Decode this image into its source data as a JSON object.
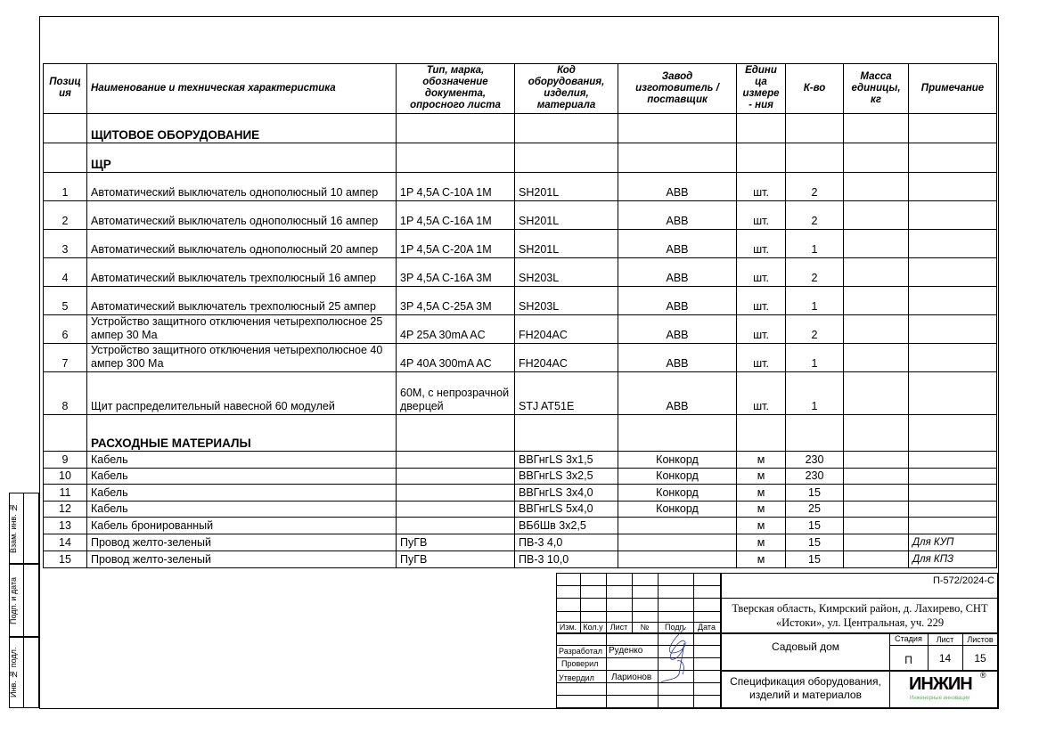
{
  "header": {
    "pos": "Позиц ия",
    "name": "Наименование и техническая характеристика",
    "type": "Тип, марка, обозначение документа, опросного листа",
    "code": "Код оборудования, изделия, материала",
    "maker": "Завод изготовитель / поставщик",
    "unit": "Едини ца измере - ния",
    "qty": "К-во",
    "mass": "Масса единицы, кг",
    "note": "Примечание"
  },
  "rows": [
    {
      "kind": "section",
      "name": "ЩИТОВОЕ ОБОРУДОВАНИЕ"
    },
    {
      "kind": "section",
      "name": "ЩР"
    },
    {
      "pos": "1",
      "name": "Автоматический выключатель однополюсный 10 ампер",
      "type": "1P 4,5A C-10A 1M",
      "code": "SH201L",
      "maker": "ABB",
      "unit": "шт.",
      "qty": "2",
      "mass": "",
      "note": ""
    },
    {
      "pos": "2",
      "name": "Автоматический выключатель однополюсный 16 ампер",
      "type": "1P 4,5A C-16A 1M",
      "code": "SH201L",
      "maker": "ABB",
      "unit": "шт.",
      "qty": "2",
      "mass": "",
      "note": ""
    },
    {
      "pos": "3",
      "name": "Автоматический выключатель однополюсный 20 ампер",
      "type": "1P 4,5A C-20A 1M",
      "code": "SH201L",
      "maker": "ABB",
      "unit": "шт.",
      "qty": "1",
      "mass": "",
      "note": ""
    },
    {
      "pos": "4",
      "name": "Автоматический выключатель трехполюсный 16 ампер",
      "type": "3P 4,5A  C-16A 3M",
      "code": "SH203L",
      "maker": "ABB",
      "unit": "шт.",
      "qty": "2",
      "mass": "",
      "note": ""
    },
    {
      "pos": "5",
      "name": "Автоматический выключатель трехполюсный 25 ампер",
      "type": "3P 4,5A  C-25A 3M",
      "code": "SH203L",
      "maker": "ABB",
      "unit": "шт.",
      "qty": "1",
      "mass": "",
      "note": ""
    },
    {
      "pos": "6",
      "name": "Устройство защитного отключения четырехполюсное 25 ампер 30 Ма",
      "type": "4P 25A 30mA AC",
      "code": "FH204AC",
      "maker": "ABB",
      "unit": "шт.",
      "qty": "2",
      "mass": "",
      "note": ""
    },
    {
      "pos": "7",
      "name": "Устройство защитного отключения четырехполюсное 40 ампер 300 Ма",
      "type": "4P 40A 300mA AC",
      "code": "FH204AC",
      "maker": "ABB",
      "unit": "шт.",
      "qty": "1",
      "mass": "",
      "note": ""
    },
    {
      "pos": "8",
      "name": "Щит распределительный навесной 60 модулей",
      "type": "60M, с непрозрачной дверцей",
      "code": "STJ AT51E",
      "maker": "ABB",
      "unit": "шт.",
      "qty": "1",
      "mass": "",
      "note": ""
    },
    {
      "kind": "section",
      "name": "РАСХОДНЫЕ МАТЕРИАЛЫ"
    },
    {
      "pos": "9",
      "name": "Кабель",
      "type": "",
      "code": "ВВГнгLS 3х1,5",
      "maker": "Конкорд",
      "unit": "м",
      "qty": "230",
      "mass": "",
      "note": ""
    },
    {
      "pos": "10",
      "name": "Кабель",
      "type": "",
      "code": "ВВГнгLS 3х2,5",
      "maker": "Конкорд",
      "unit": "м",
      "qty": "230",
      "mass": "",
      "note": ""
    },
    {
      "pos": "11",
      "name": "Кабель",
      "type": "",
      "code": "ВВГнгLS 3х4,0",
      "maker": "Конкорд",
      "unit": "м",
      "qty": "15",
      "mass": "",
      "note": ""
    },
    {
      "pos": "12",
      "name": "Кабель",
      "type": "",
      "code": "ВВГнгLS 5х4,0",
      "maker": "Конкорд",
      "unit": "м",
      "qty": "25",
      "mass": "",
      "note": ""
    },
    {
      "pos": "13",
      "name": "Кабель   бронированный",
      "type": "",
      "code": "ВБбШв  3х2,5",
      "maker": "",
      "unit": "м",
      "qty": "15",
      "mass": "",
      "note": ""
    },
    {
      "pos": "14",
      "name": "Провод желто-зеленый",
      "type": "ПуГВ",
      "code": "ПВ-3  4,0",
      "maker": "",
      "unit": "м",
      "qty": "15",
      "mass": "",
      "note": "Для КУП"
    },
    {
      "pos": "15",
      "name": "Провод желто-зеленый",
      "type": "ПуГВ",
      "code": "ПВ-3  10,0",
      "maker": "",
      "unit": "м",
      "qty": "15",
      "mass": "",
      "note": "Для КПЗ"
    }
  ],
  "stamp": {
    "vzam": "Взам. инв. №",
    "podp": "Подп. и дата",
    "inv": "Инв. № подл."
  },
  "titleblock": {
    "code": "П-572/2024-С",
    "address": "Тверская область, Кимрский район, д. Лахирево,  СНТ «Истоки», ул. Центральная, уч. 229",
    "object": "Садовый дом",
    "sheet_title": "Спецификация оборудования, изделий и материалов",
    "cols": [
      "Изм.",
      "Кол.у",
      "Лист",
      "№",
      "Подп.",
      "Дата"
    ],
    "roles": [
      {
        "role": "Разработал",
        "name": "Руденко"
      },
      {
        "role": "Проверил",
        "name": ""
      },
      {
        "role": "Утвердил",
        "name": "Ларионов"
      }
    ],
    "stage_label": "Стадия",
    "sheet_label": "Лист",
    "sheets_label": "Листов",
    "stage": "П",
    "sheet": "14",
    "sheets": "15",
    "logo": "ИНЖИН",
    "logo_sub": "Инженерные инновации",
    "logo_mark": "®",
    "logo_color": "#5cb85c"
  }
}
